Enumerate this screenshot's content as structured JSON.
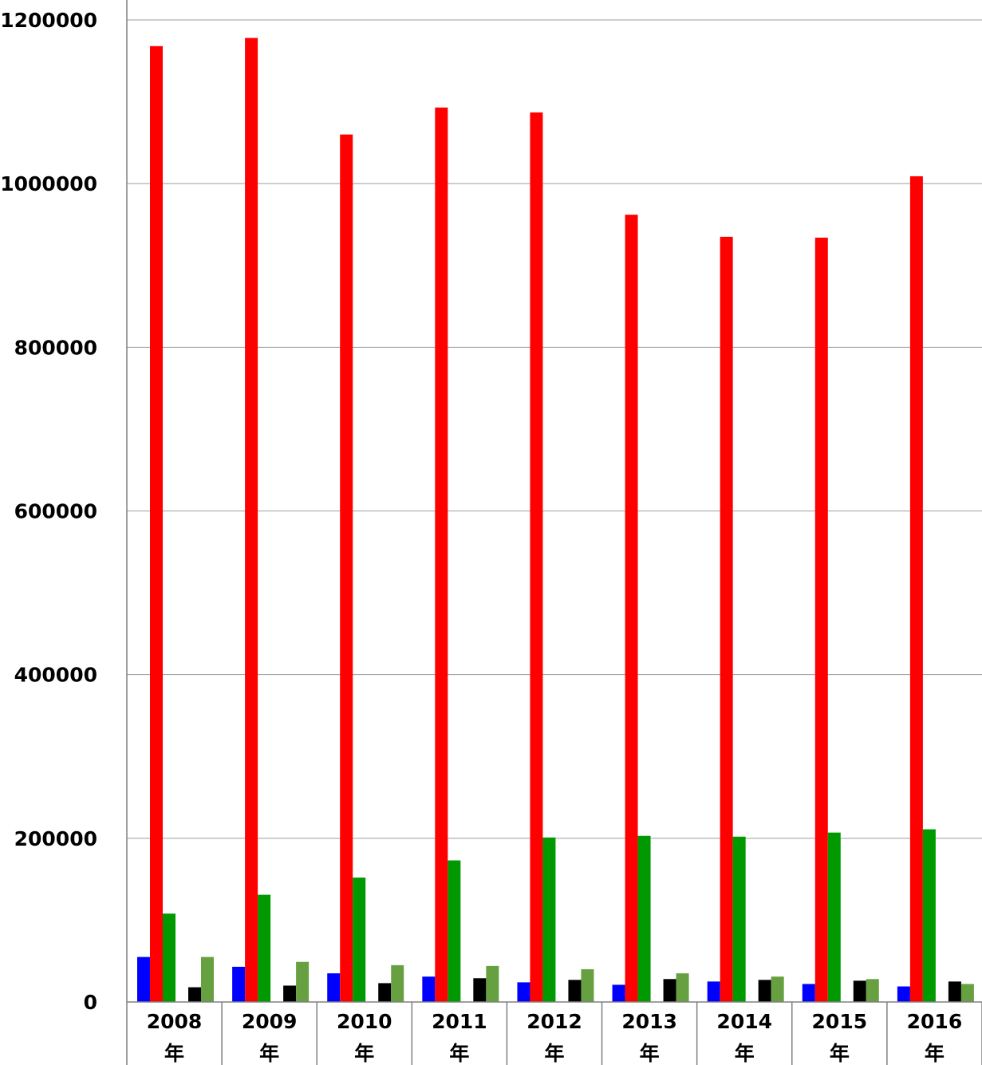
{
  "chart_data": {
    "type": "bar",
    "title": "",
    "xlabel": "",
    "ylabel": "",
    "ylim": [
      0,
      1200000
    ],
    "yticks": [
      "0",
      "200000",
      "400000",
      "600000",
      "800000",
      "1000000",
      "1200000"
    ],
    "grid": true,
    "legend": "none",
    "categories": [
      {
        "year": "2008",
        "suffix": "年"
      },
      {
        "year": "2009",
        "suffix": "年"
      },
      {
        "year": "2010",
        "suffix": "年"
      },
      {
        "year": "2011",
        "suffix": "年"
      },
      {
        "year": "2012",
        "suffix": "年"
      },
      {
        "year": "2013",
        "suffix": "年"
      },
      {
        "year": "2014",
        "suffix": "年"
      },
      {
        "year": "2015",
        "suffix": "年"
      },
      {
        "year": "2016",
        "suffix": "年"
      }
    ],
    "series": [
      {
        "color": "#0000ff",
        "values": [
          55000,
          43000,
          35000,
          31000,
          24000,
          21000,
          25000,
          22000,
          19000
        ]
      },
      {
        "color": "#ff0000",
        "values": [
          1168000,
          1178000,
          1060000,
          1093000,
          1087000,
          962000,
          935000,
          934000,
          1009000
        ]
      },
      {
        "color": "#009900",
        "values": [
          108000,
          131000,
          152000,
          173000,
          201000,
          203000,
          202000,
          207000,
          211000
        ]
      },
      {
        "color": "#ffffff",
        "values": [
          0,
          0,
          0,
          0,
          0,
          0,
          0,
          0,
          0
        ]
      },
      {
        "color": "#000000",
        "values": [
          18000,
          20000,
          23000,
          29000,
          27000,
          28000,
          27000,
          26000,
          25000
        ]
      },
      {
        "color": "#66a040",
        "values": [
          55000,
          49000,
          45000,
          44000,
          40000,
          35000,
          31000,
          28000,
          22000
        ]
      }
    ]
  }
}
